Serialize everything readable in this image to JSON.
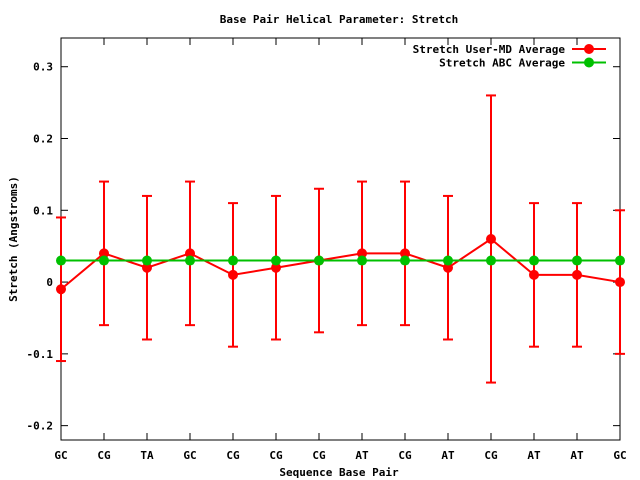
{
  "chart_data": {
    "type": "line",
    "title": "Base Pair Helical Parameter: Stretch",
    "xlabel": "Sequence Base Pair",
    "ylabel": "Stretch (Angstroms)",
    "categories": [
      "GC",
      "CG",
      "TA",
      "GC",
      "CG",
      "CG",
      "CG",
      "AT",
      "CG",
      "AT",
      "CG",
      "AT",
      "AT",
      "GC"
    ],
    "ylim": [
      -0.22,
      0.34
    ],
    "yticks": [
      -0.2,
      -0.1,
      0,
      0.1,
      0.2,
      0.3
    ],
    "ytick_labels": [
      "-0.2",
      "-0.1",
      "0",
      "0.1",
      "0.2",
      "0.3"
    ],
    "grid": false,
    "legend_position": "top-right",
    "series": [
      {
        "name": "Stretch User-MD Average",
        "color": "#ff0000",
        "values": [
          -0.01,
          0.04,
          0.02,
          0.04,
          0.01,
          0.02,
          0.03,
          0.04,
          0.04,
          0.02,
          0.06,
          0.01,
          0.01,
          0.0
        ],
        "error": [
          0.1,
          0.1,
          0.1,
          0.1,
          0.1,
          0.1,
          0.1,
          0.1,
          0.1,
          0.1,
          0.2,
          0.1,
          0.1,
          0.1
        ]
      },
      {
        "name": "Stretch ABC Average",
        "color": "#00c000",
        "values": [
          0.03,
          0.03,
          0.03,
          0.03,
          0.03,
          0.03,
          0.03,
          0.03,
          0.03,
          0.03,
          0.03,
          0.03,
          0.03,
          0.03
        ]
      }
    ]
  }
}
